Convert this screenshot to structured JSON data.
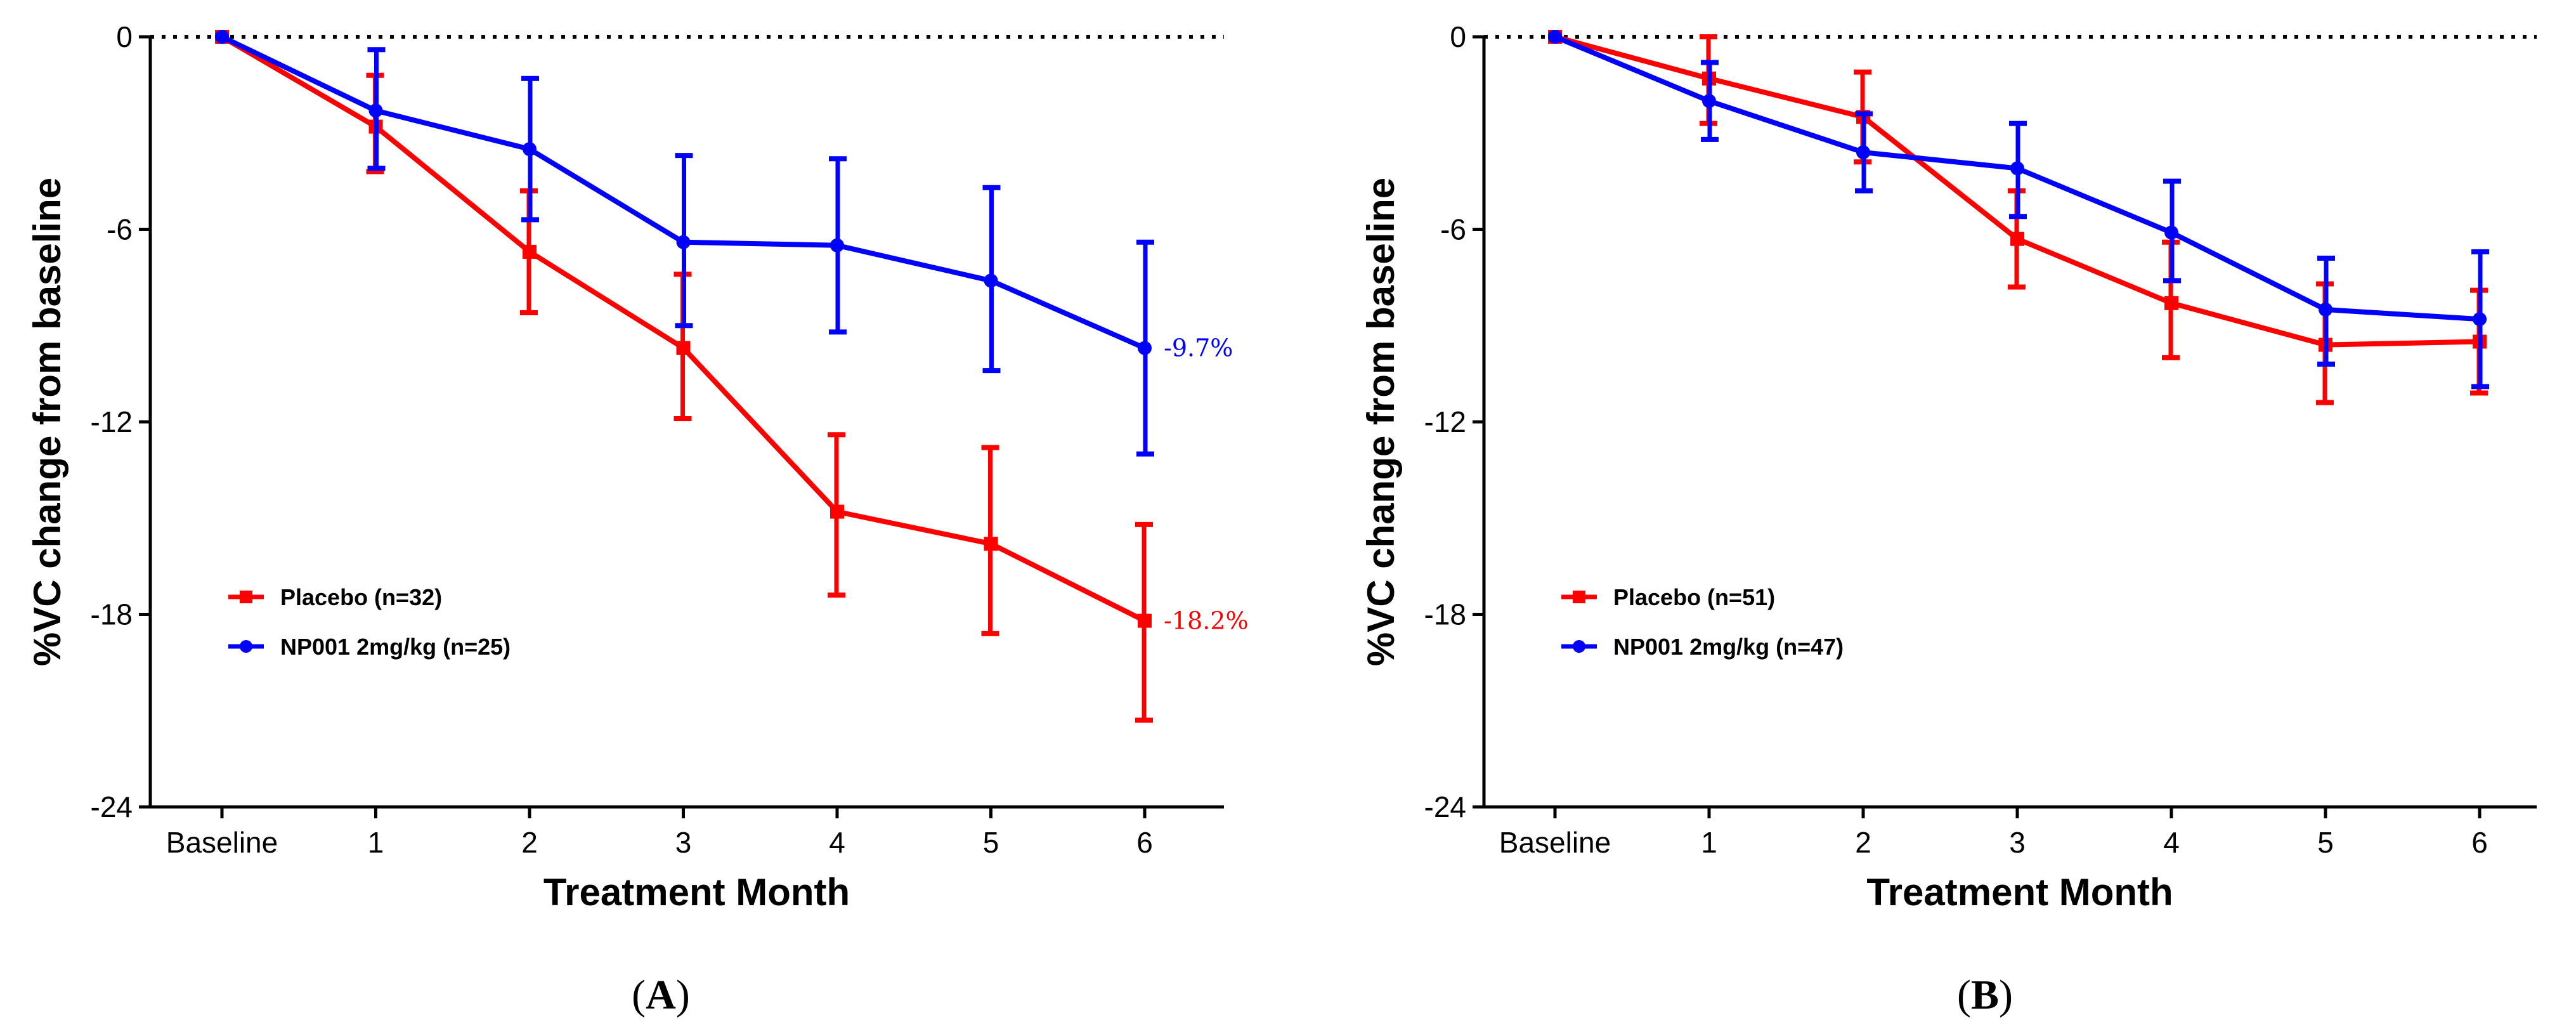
{
  "chart_data": [
    {
      "type": "line",
      "panel_label": "A",
      "xlabel": "Treatment Month",
      "ylabel": "%VC change from baseline",
      "categories": [
        "Baseline",
        "1",
        "2",
        "3",
        "4",
        "5",
        "6"
      ],
      "y_ticks": [
        0,
        -6,
        -12,
        -18,
        -24
      ],
      "y_tick_labels": [
        "0",
        "-6",
        "-12",
        "-18",
        "-24"
      ],
      "ylim": [
        -24,
        0
      ],
      "reference_line": 0,
      "legend_position": "lower-left",
      "series": [
        {
          "name": "Placebo (n=32)",
          "color": "#ff0000",
          "marker": "square",
          "values": [
            0,
            -2.8,
            -6.7,
            -9.7,
            -14.8,
            -15.8,
            -18.2
          ],
          "err_low": [
            0,
            -4.2,
            -8.6,
            -11.9,
            -17.4,
            -18.6,
            -21.3
          ],
          "err_high": [
            0,
            -1.2,
            -4.8,
            -7.4,
            -12.4,
            -12.8,
            -15.2
          ],
          "end_label": "-18.2%"
        },
        {
          "name": "NP001 2mg/kg (n=25)",
          "color": "#0000ff",
          "marker": "circle",
          "values": [
            0,
            -2.3,
            -3.5,
            -6.4,
            -6.5,
            -7.6,
            -9.7
          ],
          "err_low": [
            0,
            -4.1,
            -5.7,
            -9.0,
            -9.2,
            -10.4,
            -13.0
          ],
          "err_high": [
            0,
            -0.4,
            -1.3,
            -3.7,
            -3.8,
            -4.7,
            -6.4
          ],
          "end_label": "-9.7%"
        }
      ]
    },
    {
      "type": "line",
      "panel_label": "B",
      "xlabel": "Treatment Month",
      "ylabel": "%VC change from baseline",
      "categories": [
        "Baseline",
        "1",
        "2",
        "3",
        "4",
        "5",
        "6"
      ],
      "y_ticks": [
        0,
        -6,
        -12,
        -18,
        -24
      ],
      "y_tick_labels": [
        "0",
        "-6",
        "-12",
        "-18",
        "-24"
      ],
      "ylim": [
        -24,
        0
      ],
      "reference_line": 0,
      "legend_position": "lower-left",
      "series": [
        {
          "name": "Placebo (n=51)",
          "color": "#ff0000",
          "marker": "square",
          "values": [
            0,
            -1.3,
            -2.5,
            -6.3,
            -8.3,
            -9.6,
            -9.5
          ],
          "err_low": [
            0,
            -2.7,
            -3.9,
            -7.8,
            -10.0,
            -11.4,
            -11.1
          ],
          "err_high": [
            0,
            0.0,
            -1.1,
            -4.8,
            -6.4,
            -7.7,
            -7.9
          ],
          "end_label": ""
        },
        {
          "name": "NP001 2mg/kg (n=47)",
          "color": "#0000ff",
          "marker": "circle",
          "values": [
            0,
            -2.0,
            -3.6,
            -4.1,
            -6.1,
            -8.5,
            -8.8
          ],
          "err_low": [
            0,
            -3.2,
            -4.8,
            -5.6,
            -7.6,
            -10.2,
            -10.9
          ],
          "err_high": [
            0,
            -0.8,
            -2.4,
            -2.7,
            -4.5,
            -6.9,
            -6.7
          ],
          "end_label": ""
        }
      ]
    }
  ]
}
